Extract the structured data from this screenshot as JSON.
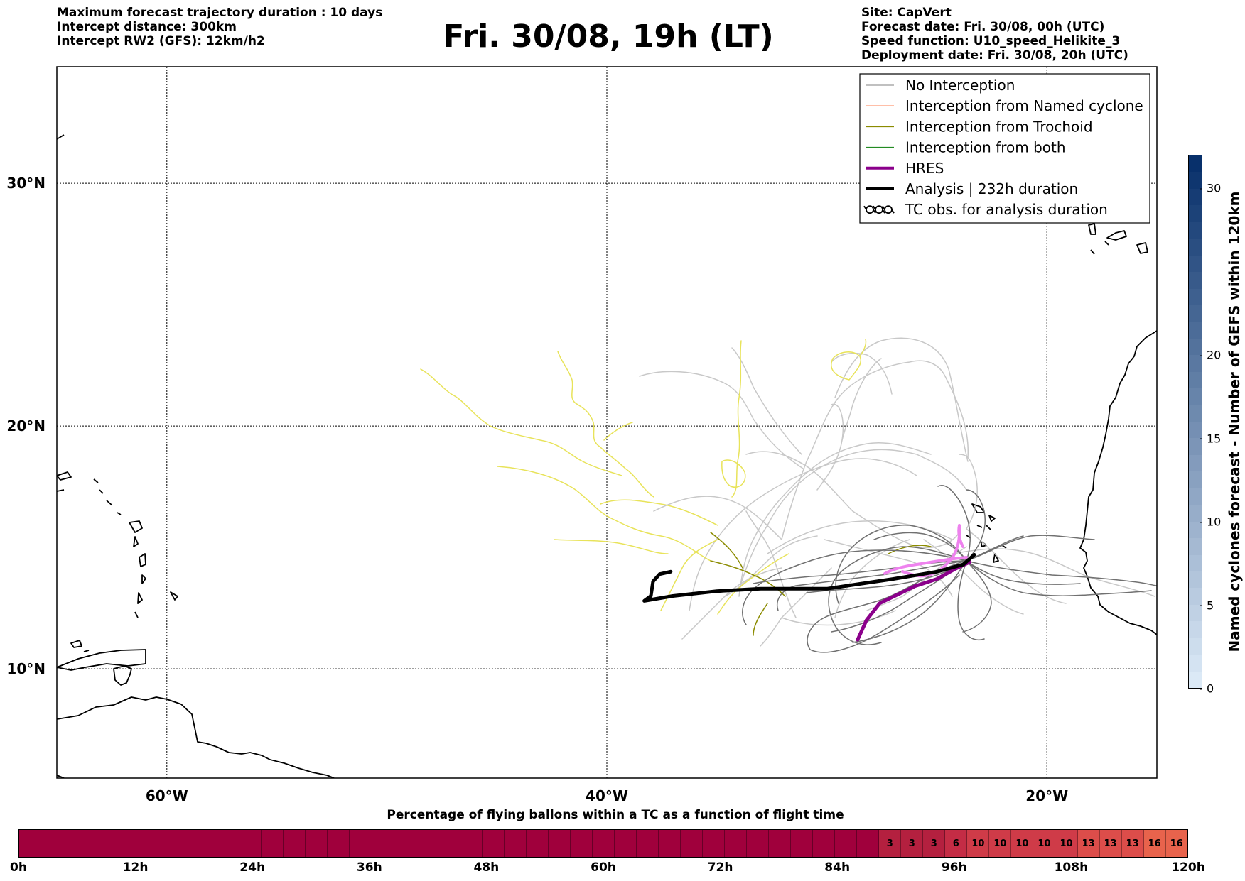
{
  "header_left": [
    "Maximum forecast trajectory duration : 10 days",
    "Intercept distance: 300km",
    "Intercept RW2 (GFS):  12km/h2"
  ],
  "header_right": [
    "Site: CapVert",
    "Forecast date: Fri. 30/08, 00h (UTC)",
    "Speed function: U10_speed_Helikite_3",
    "Deployment date: Fri. 30/08, 20h (UTC)"
  ],
  "title": "Fri. 30/08, 19h (LT)",
  "map": {
    "lon_range": [
      -65,
      -15
    ],
    "lat_range": [
      5.5,
      34.8
    ],
    "lon_ticks": [
      {
        "lon": -60,
        "label": "60°W"
      },
      {
        "lon": -40,
        "label": "40°W"
      },
      {
        "lon": -20,
        "label": "20°W"
      }
    ],
    "lat_ticks": [
      {
        "lat": 30,
        "label": "30°N"
      },
      {
        "lat": 20,
        "label": "20°N"
      },
      {
        "lat": 10,
        "label": "10°N"
      }
    ],
    "hres_track": [
      [
        -28.6,
        11.2
      ],
      [
        -28.2,
        12.0
      ],
      [
        -27.6,
        12.7
      ],
      [
        -26.0,
        13.4
      ],
      [
        -25.0,
        13.7
      ],
      [
        -24.2,
        14.1
      ],
      [
        -23.5,
        14.4
      ]
    ],
    "analysis_track": [
      [
        -37.1,
        14.0
      ],
      [
        -37.6,
        13.9
      ],
      [
        -37.9,
        13.6
      ],
      [
        -38.0,
        13.0
      ],
      [
        -38.3,
        12.8
      ],
      [
        -37.0,
        13.0
      ],
      [
        -35.0,
        13.2
      ],
      [
        -33.0,
        13.3
      ],
      [
        -30.0,
        13.3
      ],
      [
        -27.0,
        13.7
      ],
      [
        -25.0,
        14.0
      ],
      [
        -23.8,
        14.3
      ],
      [
        -23.3,
        14.7
      ]
    ],
    "colors": {
      "no_interception": "#c8c8c8",
      "no_interception_dark": "#707070",
      "named_cyclone": "#ff7f50",
      "trochoid": "#8b8b00",
      "trochoid_light": "#e8e35a",
      "both": "#228b22",
      "hres": "#8b008b",
      "hres_light": "#ee82ee",
      "analysis": "#000000"
    }
  },
  "legend": [
    {
      "label": "No Interception",
      "color": "#808080",
      "width": 1,
      "style": "line"
    },
    {
      "label": "Interception from Named cyclone",
      "color": "#ff7f50",
      "width": 1.5,
      "style": "line"
    },
    {
      "label": "Interception from Trochoid",
      "color": "#8b8b00",
      "width": 1.5,
      "style": "line"
    },
    {
      "label": "Interception from both",
      "color": "#228b22",
      "width": 1.5,
      "style": "line"
    },
    {
      "label": "HRES",
      "color": "#8b008b",
      "width": 4,
      "style": "line"
    },
    {
      "label": "Analysis | 232h duration",
      "color": "#000000",
      "width": 4,
      "style": "line"
    },
    {
      "label": "TC obs. for analysis duration",
      "color": "#000000",
      "width": 1,
      "style": "tc-symbol"
    }
  ],
  "colorbar": {
    "label": "Named cyclones forecast - Number of GEFS within 120km",
    "min": 0,
    "max": 32,
    "ticks": [
      0,
      5,
      10,
      15,
      20,
      30
    ],
    "color_low": "#dbe9f6",
    "color_high": "#08306b"
  },
  "timeline": {
    "title": "Percentage of flying ballons within a TC as a function of flight time",
    "cells": [
      "",
      "",
      "",
      "",
      "",
      "",
      "",
      "",
      "",
      "",
      "",
      "",
      "",
      "",
      "",
      "",
      "",
      "",
      "",
      "",
      "",
      "",
      "",
      "",
      "",
      "",
      "",
      "",
      "",
      "",
      "",
      "",
      "",
      "",
      "",
      "",
      "",
      "",
      "",
      "3",
      "3",
      "3",
      "6",
      "10",
      "10",
      "10",
      "10",
      "10",
      "13",
      "13",
      "13",
      "16",
      "16"
    ],
    "tick_labels": [
      "0h",
      "12h",
      "24h",
      "36h",
      "48h",
      "60h",
      "72h",
      "84h",
      "96h",
      "108h",
      "120h"
    ],
    "base_color": "#a0003c",
    "cell_colors": {
      "3": "#b4203f",
      "6": "#c42c45",
      "10": "#cf3b48",
      "13": "#dc4d4a",
      "16": "#e8634c"
    }
  }
}
